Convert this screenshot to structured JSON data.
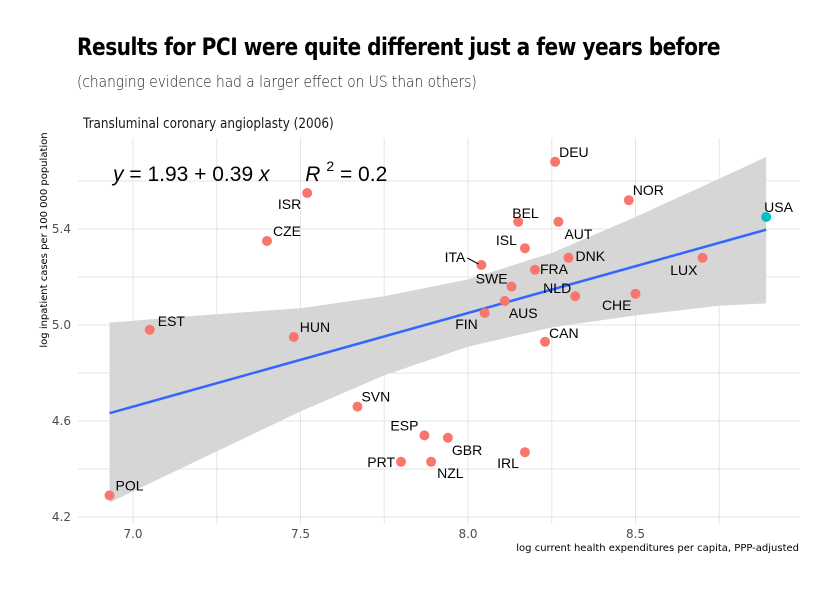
{
  "header": {
    "title": "Results for PCI were quite different just a few years before",
    "subtitle": "(changing evidence had a larger effect on US than others)",
    "panel_title": "Transluminal coronary angioplasty (2006)"
  },
  "chart_data": {
    "type": "scatter",
    "title": "Results for PCI were quite different just a few years before",
    "subtitle": "(changing evidence had a larger effect on US than others)",
    "panel_title": "Transluminal coronary angioplasty (2006)",
    "xlabel": "log current health expenditures per capita, PPP-adjusted",
    "ylabel": "log inpatient cases per 100 000 population",
    "xlim": [
      6.83,
      8.98
    ],
    "ylim": [
      4.2,
      5.78
    ],
    "x_ticks": [
      7.0,
      7.5,
      8.0,
      8.5
    ],
    "x_tick_labels": [
      "7.0",
      "7.5",
      "8.0",
      "8.5"
    ],
    "x_minor_ticks": [
      7.25,
      7.75,
      8.25,
      8.75
    ],
    "y_ticks": [
      4.2,
      4.6,
      5.0,
      5.4
    ],
    "y_tick_labels": [
      "4.2",
      "4.6",
      "5.0",
      "5.4"
    ],
    "y_minor_ticks": [
      4.4,
      4.8,
      5.2,
      5.6
    ],
    "grid": true,
    "colors": {
      "default_point": "#F8766D",
      "highlight_point": "#00BFC4",
      "fit_line": "#3366FF",
      "ribbon": "#D6D6D6",
      "grid": "#E5E5E5"
    },
    "points": [
      {
        "label": "POL",
        "x": 6.93,
        "y": 4.29,
        "highlight": false
      },
      {
        "label": "EST",
        "x": 7.05,
        "y": 4.98,
        "highlight": false
      },
      {
        "label": "CZE",
        "x": 7.4,
        "y": 5.35,
        "highlight": false
      },
      {
        "label": "HUN",
        "x": 7.48,
        "y": 4.95,
        "highlight": false
      },
      {
        "label": "ISR",
        "x": 7.52,
        "y": 5.55,
        "highlight": false
      },
      {
        "label": "SVN",
        "x": 7.67,
        "y": 4.66,
        "highlight": false
      },
      {
        "label": "PRT",
        "x": 7.8,
        "y": 4.43,
        "highlight": false
      },
      {
        "label": "ESP",
        "x": 7.87,
        "y": 4.54,
        "highlight": false
      },
      {
        "label": "NZL",
        "x": 7.89,
        "y": 4.43,
        "highlight": false
      },
      {
        "label": "GBR",
        "x": 7.94,
        "y": 4.53,
        "highlight": false
      },
      {
        "label": "ITA",
        "x": 8.04,
        "y": 5.25,
        "highlight": false
      },
      {
        "label": "FIN",
        "x": 8.05,
        "y": 5.05,
        "highlight": false
      },
      {
        "label": "AUS",
        "x": 8.11,
        "y": 5.1,
        "highlight": false
      },
      {
        "label": "SWE",
        "x": 8.13,
        "y": 5.16,
        "highlight": false
      },
      {
        "label": "BEL",
        "x": 8.15,
        "y": 5.43,
        "highlight": false
      },
      {
        "label": "ISL",
        "x": 8.17,
        "y": 5.32,
        "highlight": false
      },
      {
        "label": "IRL",
        "x": 8.17,
        "y": 4.47,
        "highlight": false
      },
      {
        "label": "FRA",
        "x": 8.2,
        "y": 5.23,
        "highlight": false
      },
      {
        "label": "CAN",
        "x": 8.23,
        "y": 4.93,
        "highlight": false
      },
      {
        "label": "DEU",
        "x": 8.26,
        "y": 5.68,
        "highlight": false
      },
      {
        "label": "AUT",
        "x": 8.27,
        "y": 5.43,
        "highlight": false
      },
      {
        "label": "DNK",
        "x": 8.3,
        "y": 5.28,
        "highlight": false
      },
      {
        "label": "NLD",
        "x": 8.32,
        "y": 5.12,
        "highlight": false
      },
      {
        "label": "NOR",
        "x": 8.48,
        "y": 5.52,
        "highlight": false
      },
      {
        "label": "CHE",
        "x": 8.5,
        "y": 5.13,
        "highlight": false
      },
      {
        "label": "LUX",
        "x": 8.7,
        "y": 5.28,
        "highlight": false
      },
      {
        "label": "USA",
        "x": 8.89,
        "y": 5.45,
        "highlight": true
      }
    ],
    "fit": {
      "intercept": 1.93,
      "slope": 0.39,
      "r_squared": 0.2,
      "x_range": [
        6.93,
        8.89
      ],
      "equation_text": {
        "lhs": "y",
        "rhs": "= 1.93 + 0.39 ",
        "x": "x",
        "r": "R",
        "sup": "2",
        "r_rhs": " = 0.2"
      }
    },
    "confidence_band": [
      {
        "x": 6.93,
        "lower": 4.26,
        "upper": 5.01
      },
      {
        "x": 7.2,
        "lower": 4.44,
        "upper": 5.04
      },
      {
        "x": 7.5,
        "lower": 4.64,
        "upper": 5.07
      },
      {
        "x": 7.75,
        "lower": 4.79,
        "upper": 5.12
      },
      {
        "x": 8.0,
        "lower": 4.91,
        "upper": 5.19
      },
      {
        "x": 8.25,
        "lower": 4.99,
        "upper": 5.3
      },
      {
        "x": 8.5,
        "lower": 5.04,
        "upper": 5.45
      },
      {
        "x": 8.75,
        "lower": 5.08,
        "upper": 5.61
      },
      {
        "x": 8.89,
        "lower": 5.09,
        "upper": 5.7
      }
    ]
  }
}
